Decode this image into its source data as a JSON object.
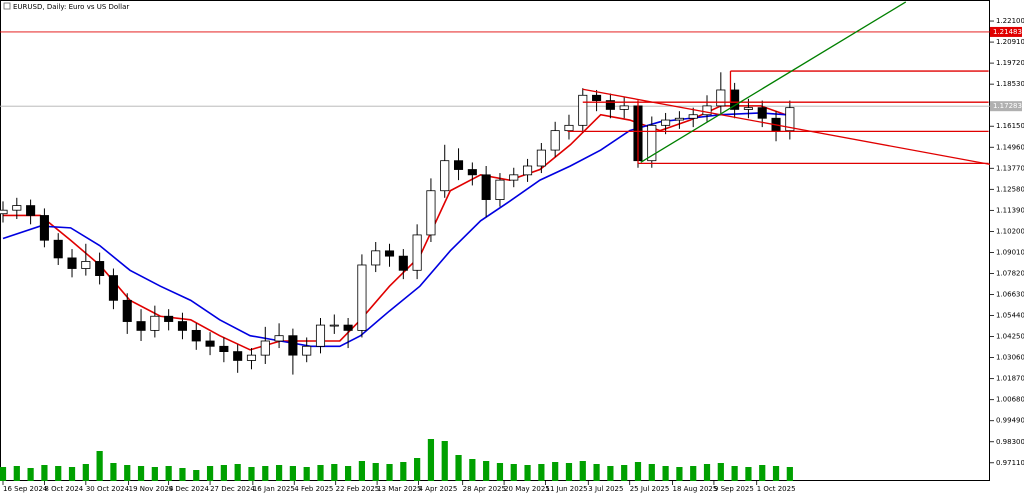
{
  "chart_data": {
    "type": "candlestick",
    "title": "EURUSD, Daily: Euro vs US Dollar",
    "xlim": [
      0,
      71.5
    ],
    "ylim": [
      0.9608,
      1.2329
    ],
    "xticks": [
      {
        "value": 0,
        "label": "16 Sep 2024"
      },
      {
        "value": 3,
        "label": "8 Oct 2024"
      },
      {
        "value": 6,
        "label": "30 Oct 2024"
      },
      {
        "value": 9.1,
        "label": "19 Nov 2024"
      },
      {
        "value": 12,
        "label": "9 Dec 2024"
      },
      {
        "value": 15,
        "label": "27 Dec 2024"
      },
      {
        "value": 18.1,
        "label": "16 Jan 2025"
      },
      {
        "value": 21.1,
        "label": "4 Feb 2025"
      },
      {
        "value": 24.1,
        "label": "22 Feb 2025"
      },
      {
        "value": 27.1,
        "label": "13 Mar 2025"
      },
      {
        "value": 30.1,
        "label": "4 Apr 2025"
      },
      {
        "value": 33.3,
        "label": "28 Apr 2025"
      },
      {
        "value": 36.3,
        "label": "20 May 2025"
      },
      {
        "value": 39.3,
        "label": "11 Jun 2025"
      },
      {
        "value": 42.4,
        "label": "3 Jul 2025"
      },
      {
        "value": 45.4,
        "label": "25 Jul 2025"
      },
      {
        "value": 48.5,
        "label": "18 Aug 2025"
      },
      {
        "value": 51.5,
        "label": "9 Sep 2025"
      },
      {
        "value": 54.6,
        "label": "1 Oct 2025"
      }
    ],
    "yticks": [
      {
        "value": 1.221,
        "label": "1.22100"
      },
      {
        "value": 1.2091,
        "label": "1.20910"
      },
      {
        "value": 1.1972,
        "label": "1.19720"
      },
      {
        "value": 1.1853,
        "label": "1.18530"
      },
      {
        "value": 1.1615,
        "label": "1.16150"
      },
      {
        "value": 1.1496,
        "label": "1.14960"
      },
      {
        "value": 1.1377,
        "label": "1.13770"
      },
      {
        "value": 1.1258,
        "label": "1.12580"
      },
      {
        "value": 1.1139,
        "label": "1.11390"
      },
      {
        "value": 1.102,
        "label": "1.10200"
      },
      {
        "value": 1.0901,
        "label": "1.09010"
      },
      {
        "value": 1.0782,
        "label": "1.07820"
      },
      {
        "value": 1.0663,
        "label": "1.06630"
      },
      {
        "value": 1.0544,
        "label": "1.05440"
      },
      {
        "value": 1.0425,
        "label": "1.04250"
      },
      {
        "value": 1.0306,
        "label": "1.03060"
      },
      {
        "value": 1.0187,
        "label": "1.01870"
      },
      {
        "value": 1.0068,
        "label": "1.00680"
      },
      {
        "value": 0.9949,
        "label": "0.99490"
      },
      {
        "value": 0.983,
        "label": "0.98300"
      },
      {
        "value": 0.9711,
        "label": "0.97110"
      }
    ],
    "candle_colors": {
      "up": "#ffffff",
      "down": "#000000",
      "outline": "#000000"
    },
    "open": [
      1.112,
      1.114,
      1.1166,
      1.111,
      1.097,
      1.087,
      1.081,
      1.085,
      1.077,
      1.063,
      1.051,
      1.046,
      1.054,
      1.051,
      1.046,
      1.04,
      1.037,
      1.034,
      1.029,
      1.032,
      1.04,
      1.043,
      1.032,
      1.037,
      1.049,
      1.049,
      1.046,
      1.083,
      1.091,
      1.088,
      1.08,
      1.1,
      1.125,
      1.142,
      1.137,
      1.134,
      1.12,
      1.131,
      1.134,
      1.139,
      1.148,
      1.159,
      1.162,
      1.179,
      1.176,
      1.171,
      1.173,
      1.142,
      1.162,
      1.165,
      1.166,
      1.168,
      1.173,
      1.182,
      1.171,
      1.172,
      1.166,
      1.159
    ],
    "high": [
      1.119,
      1.121,
      1.12,
      1.115,
      1.101,
      1.092,
      1.095,
      1.09,
      1.081,
      1.067,
      1.058,
      1.06,
      1.058,
      1.056,
      1.05,
      1.045,
      1.042,
      1.038,
      1.036,
      1.048,
      1.05,
      1.047,
      1.042,
      1.053,
      1.055,
      1.053,
      1.089,
      1.096,
      1.095,
      1.092,
      1.106,
      1.132,
      1.151,
      1.149,
      1.141,
      1.139,
      1.135,
      1.138,
      1.143,
      1.152,
      1.164,
      1.168,
      1.183,
      1.182,
      1.18,
      1.178,
      1.176,
      1.167,
      1.169,
      1.17,
      1.172,
      1.179,
      1.192,
      1.186,
      1.177,
      1.176,
      1.17,
      1.176
    ],
    "low": [
      1.107,
      1.109,
      1.106,
      1.093,
      1.083,
      1.076,
      1.077,
      1.072,
      1.058,
      1.044,
      1.04,
      1.042,
      1.046,
      1.041,
      1.035,
      1.032,
      1.028,
      1.022,
      1.024,
      1.027,
      1.036,
      1.021,
      1.028,
      1.033,
      1.044,
      1.036,
      1.042,
      1.079,
      1.082,
      1.075,
      1.075,
      1.096,
      1.121,
      1.131,
      1.128,
      1.11,
      1.116,
      1.127,
      1.13,
      1.135,
      1.144,
      1.154,
      1.158,
      1.17,
      1.166,
      1.166,
      1.138,
      1.138,
      1.157,
      1.16,
      1.161,
      1.164,
      1.168,
      1.166,
      1.166,
      1.161,
      1.153,
      1.154
    ],
    "close": [
      1.114,
      1.1166,
      1.111,
      1.097,
      1.087,
      1.081,
      1.085,
      1.077,
      1.063,
      1.051,
      1.046,
      1.054,
      1.051,
      1.046,
      1.04,
      1.037,
      1.034,
      1.029,
      1.032,
      1.04,
      1.043,
      1.032,
      1.037,
      1.049,
      1.049,
      1.046,
      1.083,
      1.091,
      1.088,
      1.08,
      1.1,
      1.125,
      1.142,
      1.137,
      1.134,
      1.12,
      1.131,
      1.134,
      1.139,
      1.148,
      1.159,
      1.162,
      1.179,
      1.176,
      1.171,
      1.173,
      1.142,
      1.162,
      1.165,
      1.166,
      1.168,
      1.173,
      1.182,
      1.171,
      1.172,
      1.166,
      1.159,
      1.172
    ],
    "volume": [
      28,
      30,
      26,
      32,
      30,
      28,
      34,
      60,
      36,
      32,
      30,
      28,
      30,
      26,
      22,
      30,
      32,
      34,
      28,
      30,
      32,
      30,
      28,
      32,
      34,
      30,
      40,
      36,
      34,
      38,
      46,
      84,
      80,
      52,
      44,
      40,
      36,
      34,
      32,
      34,
      38,
      36,
      40,
      34,
      30,
      32,
      38,
      34,
      30,
      28,
      30,
      34,
      36,
      30,
      28,
      32,
      30,
      28
    ],
    "volume_color": "#00a000",
    "indicators": [
      {
        "color": "#e00000",
        "x": [
          0,
          2.7,
          4.9,
          7,
          9.2,
          11.4,
          13.6,
          15.7,
          17.9,
          20.1,
          22.3,
          24.4,
          25.9,
          28,
          30.2,
          32.4,
          34.6,
          36.7,
          38.9,
          41.1,
          43.3,
          45.4,
          47.6,
          49.8,
          52,
          54.9,
          56.7
        ],
        "values": [
          1.111,
          1.111,
          1.097,
          1.083,
          1.063,
          1.054,
          1.052,
          1.043,
          1.035,
          1.04,
          1.04,
          1.04,
          1.052,
          1.071,
          1.088,
          1.125,
          1.134,
          1.131,
          1.137,
          1.151,
          1.168,
          1.165,
          1.159,
          1.165,
          1.173,
          1.173,
          1.168
        ]
      },
      {
        "color": "#0000e0",
        "x": [
          0,
          2.7,
          4.9,
          7,
          9.2,
          11.4,
          13.6,
          15.7,
          17.9,
          20.1,
          22.3,
          24.4,
          25.9,
          28,
          30.2,
          32.4,
          34.6,
          36.7,
          38.9,
          41.1,
          43.3,
          45.4,
          47.6,
          49.8,
          52,
          54.9,
          56.7
        ],
        "values": [
          1.098,
          1.105,
          1.104,
          1.094,
          1.08,
          1.071,
          1.063,
          1.052,
          1.043,
          1.04,
          1.037,
          1.037,
          1.043,
          1.057,
          1.071,
          1.091,
          1.108,
          1.119,
          1.131,
          1.139,
          1.148,
          1.159,
          1.164,
          1.166,
          1.168,
          1.169,
          1.168
        ]
      }
    ],
    "drawings": [
      {
        "color": "#e00000",
        "x": [
          42,
          71.5
        ],
        "y": [
          1.1824,
          1.1399
        ]
      },
      {
        "color": "#e00000",
        "x": [
          52.7,
          71.4
        ],
        "y": [
          1.1927,
          1.1927
        ]
      },
      {
        "color": "#e00000",
        "x": [
          42,
          71.4
        ],
        "y": [
          1.1751,
          1.1751
        ]
      },
      {
        "color": "#e00000",
        "x": [
          40.9,
          71.4
        ],
        "y": [
          1.1586,
          1.1586
        ]
      },
      {
        "color": "#e00000",
        "x": [
          46,
          71.4
        ],
        "y": [
          1.1405,
          1.1405
        ]
      },
      {
        "color": "#e00000",
        "x": [
          52.7,
          52.7
        ],
        "y": [
          1.1927,
          1.1751
        ]
      },
      {
        "color": "#e00000",
        "x": [
          46,
          46
        ],
        "y": [
          1.1762,
          1.1405
        ]
      },
      {
        "color": "#008000",
        "x": [
          46.2,
          65.4
        ],
        "y": [
          1.1411,
          1.2318
        ]
      }
    ],
    "price_lines": [
      {
        "value": 1.21483,
        "color": "#e00000"
      },
      {
        "value": 1.17283,
        "color": "#b0b0b0"
      }
    ]
  }
}
